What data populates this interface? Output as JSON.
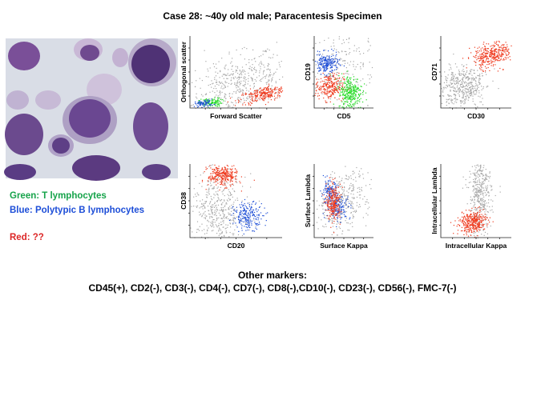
{
  "header": {
    "title": "Case 28: ~40y old male; Paracentesis Specimen"
  },
  "legend": {
    "green": "Green: T lymphocytes",
    "blue": "Blue: Polytypic B lymphocytes",
    "red": "Red: ??"
  },
  "plots": [
    {
      "x_label": "Forward Scatter",
      "y_label": "Orthogonal scatter"
    },
    {
      "x_label": "CD5",
      "y_label": "CD19"
    },
    {
      "x_label": "CD30",
      "y_label": "CD71"
    },
    {
      "x_label": "CD20",
      "y_label": "CD38"
    },
    {
      "x_label": "Surface Kappa",
      "y_label": "Surface Lambda"
    },
    {
      "x_label": "Intracellular Kappa",
      "y_label": "Intracellular Lambda"
    }
  ],
  "other_markers": {
    "title": "Other markers:",
    "text": "CD45(+), CD2(-), CD3(-), CD4(-), CD7(-), CD8(-),CD10(-), CD23(-), CD56(-), FMC-7(-)"
  }
}
